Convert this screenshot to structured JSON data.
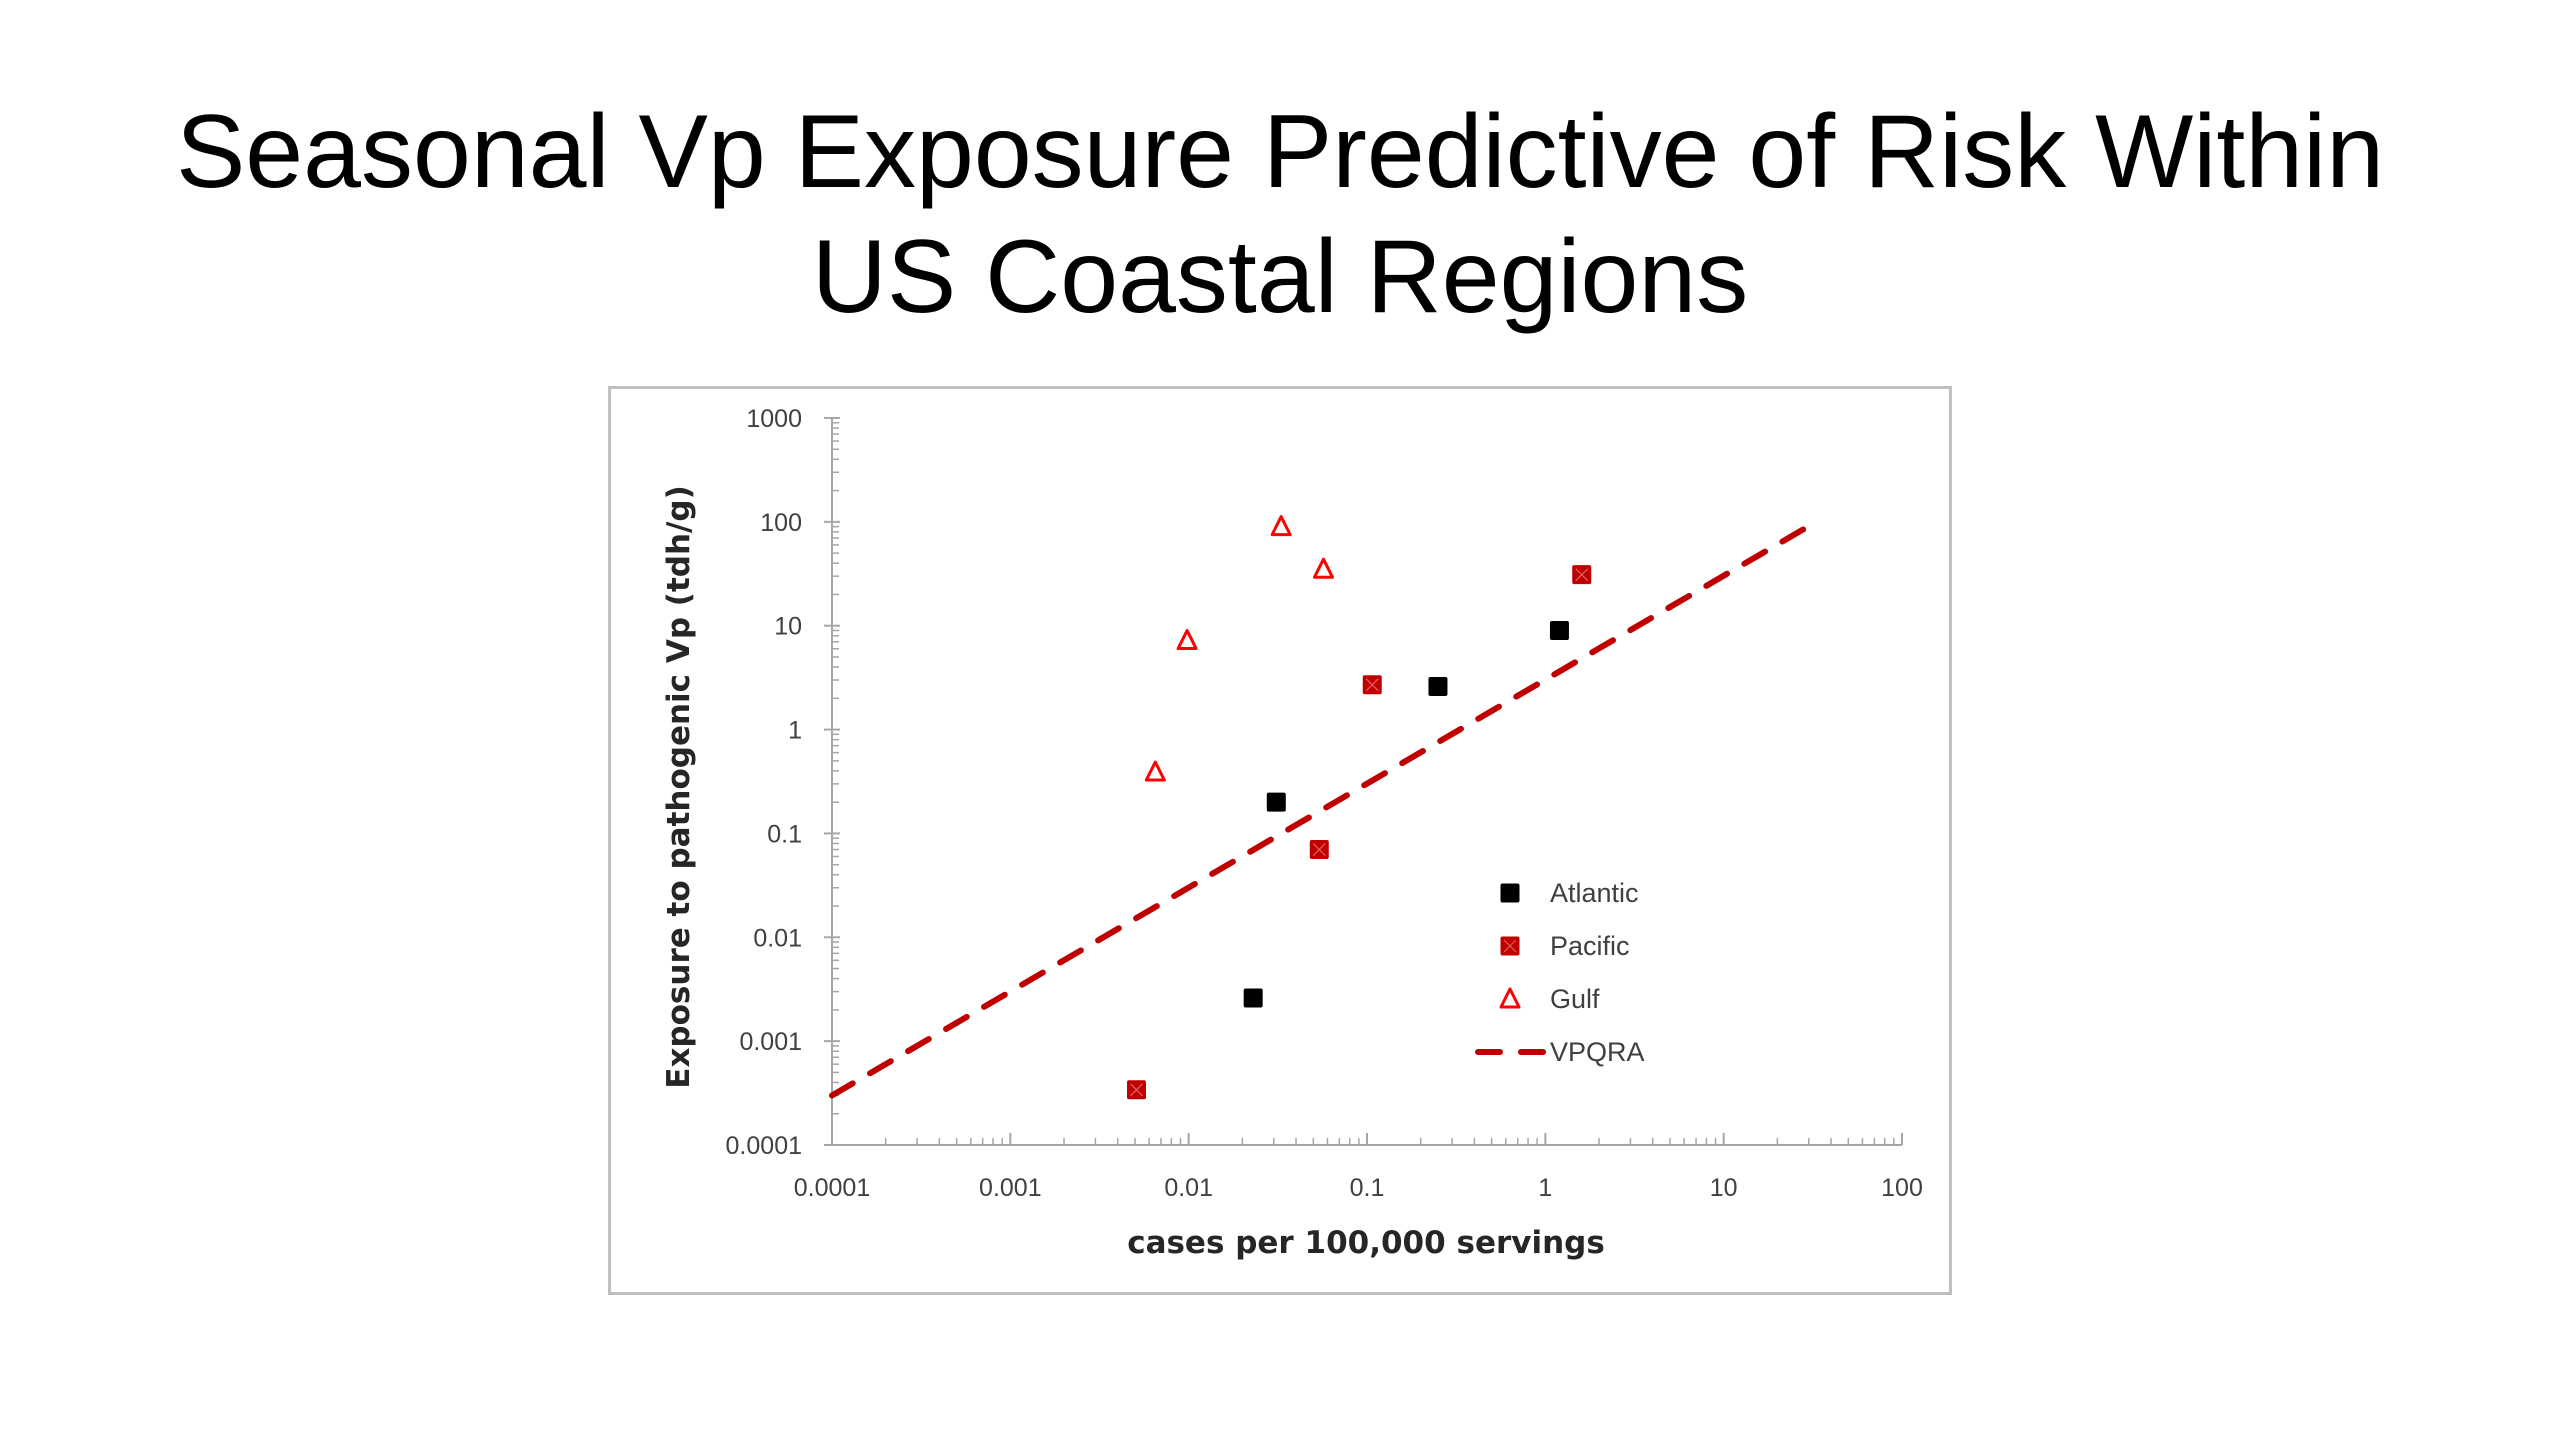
{
  "slide": {
    "title_line_1": "Seasonal Vp Exposure Predictive of Risk Within",
    "title_line_2": "US Coastal Regions"
  },
  "chart_data": {
    "type": "scatter",
    "title": "",
    "xlabel": "cases per 100,000 servings",
    "ylabel": "Exposure to pathogenic Vp (tdh/g)",
    "xscale": "log",
    "yscale": "log",
    "xlim": [
      0.0001,
      100
    ],
    "ylim": [
      0.0001,
      1000
    ],
    "x_ticks": [
      "0.0001",
      "0.001",
      "0.01",
      "0.1",
      "1",
      "10",
      "100"
    ],
    "y_ticks": [
      "0.0001",
      "0.001",
      "0.01",
      "0.1",
      "1",
      "10",
      "100",
      "1000"
    ],
    "grid": false,
    "legend_position": "bottom-right",
    "series": [
      {
        "name": "Atlantic",
        "marker": "filled-square",
        "color": "#000000",
        "points": [
          {
            "x": 0.023,
            "y": 0.0026
          },
          {
            "x": 0.031,
            "y": 0.2
          },
          {
            "x": 0.25,
            "y": 2.6
          },
          {
            "x": 1.2,
            "y": 9
          }
        ]
      },
      {
        "name": "Pacific",
        "marker": "crossed-square",
        "color": "#c00000",
        "points": [
          {
            "x": 0.0051,
            "y": 0.00034
          },
          {
            "x": 0.054,
            "y": 0.07
          },
          {
            "x": 0.107,
            "y": 2.7
          },
          {
            "x": 1.6,
            "y": 31
          }
        ]
      },
      {
        "name": "Gulf",
        "marker": "open-triangle",
        "color": "#ff0000",
        "points": [
          {
            "x": 0.0065,
            "y": 0.39
          },
          {
            "x": 0.0098,
            "y": 7.2
          },
          {
            "x": 0.033,
            "y": 90
          },
          {
            "x": 0.057,
            "y": 35
          }
        ]
      },
      {
        "name": "VPQRA",
        "marker": "dashed-line",
        "color": "#c00000",
        "points": [
          {
            "x": 0.0001,
            "y": 0.0003
          },
          {
            "x": 33,
            "y": 100
          }
        ]
      }
    ]
  }
}
